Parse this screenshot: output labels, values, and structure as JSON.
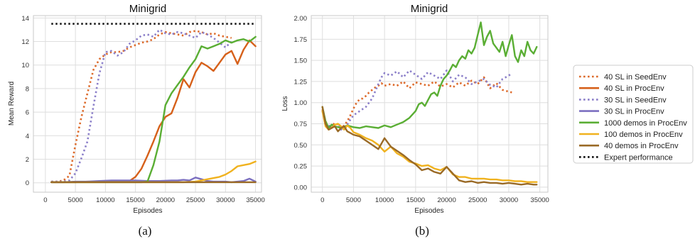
{
  "legend": [
    {
      "label": "40 SL in SeedEnv",
      "color": "#dd6a2a",
      "style": "dotted"
    },
    {
      "label": "40 SL in ProcEnv",
      "color": "#d6601a",
      "style": "solid"
    },
    {
      "label": "30 SL in SeedEnv",
      "color": "#8b7fc9",
      "style": "dotted"
    },
    {
      "label": "30 SL in ProcEnv",
      "color": "#7b6fc0",
      "style": "solid"
    },
    {
      "label": "1000 demos in ProcEnv",
      "color": "#5aae34",
      "style": "solid"
    },
    {
      "label": "100 demos in ProcEnv",
      "color": "#f0b21e",
      "style": "solid"
    },
    {
      "label": "40 demos in ProcEnv",
      "color": "#9a6a26",
      "style": "solid"
    },
    {
      "label": "Expert performance",
      "color": "#111111",
      "style": "dotted"
    }
  ],
  "chart_data": [
    {
      "type": "line",
      "title": "Minigrid",
      "caption": "(a)",
      "xlabel": "Episodes",
      "ylabel": "Mean Reward",
      "xlim": [
        -2000,
        36000
      ],
      "ylim": [
        -0.8,
        14.2
      ],
      "xticks": [
        0,
        5000,
        10000,
        15000,
        20000,
        25000,
        30000,
        35000
      ],
      "yticks": [
        0,
        2,
        4,
        6,
        8,
        10,
        12,
        14
      ],
      "xtick_labels": [
        "0",
        "5000",
        "10000",
        "15000",
        "20000",
        "25000",
        "30000",
        "35000"
      ],
      "ytick_labels": [
        "0",
        "2",
        "4",
        "6",
        "8",
        "10",
        "12",
        "14"
      ],
      "grid": true,
      "series": [
        {
          "name": "40 SL in SeedEnv",
          "x": [
            1000,
            2000,
            3000,
            4000,
            5000,
            6000,
            7000,
            8000,
            9000,
            10000,
            11000,
            12000,
            13000,
            14000,
            15000,
            16000,
            17000,
            18000,
            19000,
            20000,
            21000,
            22000,
            23000,
            24000,
            25000,
            26000,
            27000,
            28000,
            29000,
            30000,
            31000
          ],
          "y": [
            0.1,
            0.1,
            0.2,
            0.6,
            3.2,
            5.6,
            7.6,
            9.6,
            10.5,
            10.9,
            11.1,
            11.1,
            11.2,
            11.5,
            11.7,
            11.9,
            12.0,
            12.2,
            12.6,
            12.8,
            12.7,
            12.6,
            12.5,
            12.8,
            12.9,
            12.8,
            12.6,
            12.7,
            12.5,
            12.4,
            12.3
          ]
        },
        {
          "name": "40 SL in ProcEnv",
          "x": [
            1000,
            3000,
            5000,
            7000,
            9000,
            11000,
            13000,
            14000,
            15000,
            16000,
            17000,
            18000,
            19000,
            20000,
            21000,
            22000,
            23000,
            24000,
            25000,
            26000,
            27000,
            28000,
            29000,
            30000,
            31000,
            32000,
            33000,
            34000,
            35000
          ],
          "y": [
            0.05,
            0.05,
            0.05,
            0.1,
            0.1,
            0.1,
            0.1,
            0.15,
            0.5,
            1.2,
            2.3,
            3.5,
            4.8,
            5.6,
            5.9,
            7.2,
            8.8,
            8.1,
            9.4,
            10.2,
            9.9,
            9.5,
            10.2,
            10.9,
            11.2,
            10.1,
            11.3,
            12.1,
            11.6
          ]
        },
        {
          "name": "30 SL in SeedEnv",
          "x": [
            1000,
            3000,
            4000,
            5000,
            6000,
            7000,
            8000,
            9000,
            10000,
            11000,
            12000,
            13000,
            14000,
            15000,
            16000,
            17000,
            18000,
            19000,
            20000,
            21000,
            22000,
            23000,
            24000,
            25000,
            26000,
            27000,
            28000,
            29000,
            30000,
            31000
          ],
          "y": [
            0.1,
            0.1,
            0.2,
            0.8,
            2.1,
            3.5,
            6.5,
            9.3,
            11.1,
            11.2,
            10.8,
            11.1,
            11.8,
            12.1,
            12.5,
            12.6,
            12.4,
            13.0,
            12.7,
            12.6,
            12.8,
            12.7,
            12.5,
            12.3,
            12.8,
            12.6,
            12.3,
            11.9,
            11.5,
            12.0
          ]
        },
        {
          "name": "30 SL in ProcEnv",
          "x": [
            1000,
            3000,
            5000,
            7000,
            9000,
            11000,
            13000,
            15000,
            17000,
            19000,
            21000,
            22000,
            23000,
            24000,
            25000,
            26000,
            27000,
            28000,
            29000,
            30000,
            31000,
            32000,
            33000,
            34000,
            35000
          ],
          "y": [
            0.05,
            0.05,
            0.1,
            0.1,
            0.15,
            0.2,
            0.2,
            0.2,
            0.15,
            0.15,
            0.2,
            0.2,
            0.25,
            0.2,
            0.45,
            0.3,
            0.15,
            0.1,
            0.1,
            0.1,
            0.05,
            0.1,
            0.15,
            0.35,
            0.1
          ]
        },
        {
          "name": "1000 demos in ProcEnv",
          "x": [
            1000,
            3000,
            5000,
            7000,
            9000,
            11000,
            13000,
            15000,
            16000,
            17000,
            18000,
            19000,
            20000,
            21000,
            22000,
            23000,
            24000,
            25000,
            26000,
            27000,
            28000,
            29000,
            30000,
            31000,
            32000,
            33000,
            34000,
            35000
          ],
          "y": [
            0.05,
            0.05,
            0.05,
            0.05,
            0.05,
            0.05,
            0.05,
            0.05,
            0.05,
            0.1,
            1.5,
            3.5,
            6.6,
            7.6,
            8.3,
            9.0,
            9.8,
            10.5,
            11.6,
            11.4,
            11.6,
            11.8,
            12.1,
            11.9,
            12.1,
            12.2,
            12.0,
            12.4
          ]
        },
        {
          "name": "100 demos in ProcEnv",
          "x": [
            1000,
            3000,
            5000,
            7000,
            9000,
            11000,
            13000,
            15000,
            17000,
            19000,
            21000,
            23000,
            25000,
            26000,
            27000,
            28000,
            29000,
            30000,
            31000,
            32000,
            33000,
            34000,
            35000
          ],
          "y": [
            0.05,
            0.05,
            0.05,
            0.05,
            0.05,
            0.05,
            0.05,
            0.05,
            0.05,
            0.05,
            0.05,
            0.05,
            0.1,
            0.2,
            0.3,
            0.4,
            0.5,
            0.7,
            1.0,
            1.4,
            1.5,
            1.6,
            1.8
          ]
        },
        {
          "name": "40 demos in ProcEnv",
          "x": [
            1000,
            3000,
            5000,
            7000,
            9000,
            11000,
            13000,
            15000,
            17000,
            19000,
            21000,
            23000,
            25000,
            27000,
            29000,
            31000,
            33000,
            35000
          ],
          "y": [
            0.05,
            0.05,
            0.05,
            0.05,
            0.05,
            0.05,
            0.05,
            0.05,
            0.05,
            0.05,
            0.05,
            0.05,
            0.05,
            0.05,
            0.05,
            0.05,
            0.05,
            0.05
          ]
        },
        {
          "name": "Expert performance",
          "x": [
            1000,
            35000
          ],
          "y": [
            13.5,
            13.5
          ]
        }
      ]
    },
    {
      "type": "line",
      "title": "Minigrid",
      "caption": "(b)",
      "xlabel": "Episodes",
      "ylabel": "Loss",
      "xlim": [
        -1800,
        36300
      ],
      "ylim": [
        -0.06,
        2.03
      ],
      "xticks": [
        0,
        5000,
        10000,
        15000,
        20000,
        25000,
        30000,
        35000
      ],
      "yticks": [
        0.0,
        0.25,
        0.5,
        0.75,
        1.0,
        1.25,
        1.5,
        1.75,
        2.0
      ],
      "xtick_labels": [
        "0",
        "5000",
        "10000",
        "15000",
        "20000",
        "25000",
        "30000",
        "35000"
      ],
      "ytick_labels": [
        "0.00",
        "0.25",
        "0.50",
        "0.75",
        "1.00",
        "1.25",
        "1.50",
        "1.75",
        "2.00"
      ],
      "grid": true,
      "series": [
        {
          "name": "40 SL in SeedEnv",
          "x": [
            0,
            500,
            1000,
            1500,
            2000,
            2500,
            3000,
            3500,
            4000,
            4500,
            5000,
            5500,
            6000,
            6500,
            7000,
            7500,
            8000,
            8500,
            9000,
            9500,
            10000,
            11000,
            12000,
            13000,
            14000,
            15000,
            16000,
            17000,
            18000,
            19000,
            20000,
            21000,
            22000,
            23000,
            24000,
            25000,
            26000,
            27000,
            28000,
            29000,
            30000,
            30500
          ],
          "y": [
            0.92,
            0.78,
            0.7,
            0.72,
            0.76,
            0.74,
            0.7,
            0.73,
            0.78,
            0.85,
            0.93,
            1.0,
            1.04,
            1.05,
            1.08,
            1.12,
            1.15,
            1.18,
            1.2,
            1.23,
            1.2,
            1.22,
            1.2,
            1.25,
            1.17,
            1.24,
            1.22,
            1.2,
            1.25,
            1.19,
            1.22,
            1.18,
            1.24,
            1.2,
            1.26,
            1.22,
            1.3,
            1.17,
            1.23,
            1.15,
            1.13,
            1.12
          ]
        },
        {
          "name": "30 SL in SeedEnv",
          "x": [
            0,
            500,
            1000,
            1500,
            2000,
            2500,
            3000,
            3500,
            4000,
            4500,
            5000,
            6000,
            7000,
            8000,
            9000,
            9500,
            10000,
            11000,
            12000,
            13000,
            14000,
            15000,
            16000,
            17000,
            18000,
            19000,
            20000,
            21000,
            22000,
            23000,
            24000,
            25000,
            26000,
            27000,
            28000,
            29000,
            30000,
            30500
          ],
          "y": [
            0.9,
            0.75,
            0.72,
            0.74,
            0.7,
            0.73,
            0.68,
            0.72,
            0.74,
            0.8,
            0.85,
            0.9,
            0.95,
            1.05,
            1.22,
            1.3,
            1.35,
            1.32,
            1.37,
            1.3,
            1.38,
            1.33,
            1.28,
            1.36,
            1.32,
            1.28,
            1.38,
            1.25,
            1.33,
            1.3,
            1.22,
            1.25,
            1.28,
            1.21,
            1.18,
            1.28,
            1.32,
            1.35
          ]
        },
        {
          "name": "1000 demos in ProcEnv",
          "x": [
            0,
            500,
            1000,
            1500,
            2000,
            3000,
            4000,
            5000,
            6000,
            7000,
            8000,
            9000,
            10000,
            11000,
            12000,
            13000,
            14000,
            15000,
            15500,
            16000,
            16500,
            17000,
            17500,
            18000,
            18500,
            19000,
            19500,
            20000,
            20500,
            21000,
            21500,
            22000,
            22500,
            23000,
            23500,
            24000,
            24500,
            25000,
            25500,
            26000,
            26500,
            27000,
            27500,
            28000,
            28500,
            29000,
            29500,
            30000,
            30500,
            31000,
            31500,
            32000,
            32500,
            33000,
            33500,
            34000,
            34500
          ],
          "y": [
            0.95,
            0.78,
            0.7,
            0.74,
            0.72,
            0.7,
            0.73,
            0.71,
            0.7,
            0.72,
            0.71,
            0.7,
            0.73,
            0.71,
            0.74,
            0.77,
            0.82,
            0.9,
            0.98,
            1.0,
            0.96,
            1.03,
            1.1,
            1.12,
            1.08,
            1.2,
            1.28,
            1.32,
            1.38,
            1.45,
            1.42,
            1.5,
            1.55,
            1.52,
            1.62,
            1.58,
            1.65,
            1.8,
            1.95,
            1.68,
            1.78,
            1.85,
            1.7,
            1.65,
            1.6,
            1.72,
            1.55,
            1.68,
            1.8,
            1.55,
            1.48,
            1.62,
            1.55,
            1.72,
            1.62,
            1.58,
            1.66
          ]
        },
        {
          "name": "100 demos in ProcEnv",
          "x": [
            0,
            500,
            1000,
            1500,
            2000,
            2500,
            3000,
            3500,
            4000,
            4500,
            5000,
            6000,
            7000,
            8000,
            9000,
            10000,
            11000,
            12000,
            13000,
            14000,
            15000,
            16000,
            17000,
            18000,
            19000,
            20000,
            21000,
            22000,
            23000,
            24000,
            25000,
            26000,
            27000,
            28000,
            29000,
            30000,
            31000,
            32000,
            33000,
            34000,
            34500
          ],
          "y": [
            0.9,
            0.72,
            0.68,
            0.7,
            0.74,
            0.75,
            0.72,
            0.68,
            0.73,
            0.7,
            0.65,
            0.62,
            0.58,
            0.55,
            0.5,
            0.42,
            0.48,
            0.4,
            0.36,
            0.3,
            0.28,
            0.25,
            0.26,
            0.22,
            0.2,
            0.24,
            0.15,
            0.12,
            0.12,
            0.1,
            0.1,
            0.1,
            0.09,
            0.09,
            0.08,
            0.08,
            0.07,
            0.07,
            0.06,
            0.06,
            0.06
          ]
        },
        {
          "name": "40 demos in ProcEnv",
          "x": [
            0,
            500,
            1000,
            1500,
            2000,
            2500,
            3000,
            3500,
            4000,
            4500,
            5000,
            6000,
            7000,
            8000,
            9000,
            10000,
            11000,
            12000,
            13000,
            14000,
            15000,
            16000,
            17000,
            18000,
            19000,
            20000,
            21000,
            22000,
            23000,
            24000,
            25000,
            26000,
            27000,
            28000,
            29000,
            30000,
            31000,
            32000,
            33000,
            34000,
            34500
          ],
          "y": [
            0.95,
            0.75,
            0.68,
            0.7,
            0.72,
            0.66,
            0.7,
            0.72,
            0.66,
            0.64,
            0.62,
            0.6,
            0.55,
            0.5,
            0.45,
            0.58,
            0.48,
            0.43,
            0.38,
            0.32,
            0.27,
            0.2,
            0.22,
            0.18,
            0.16,
            0.24,
            0.16,
            0.08,
            0.06,
            0.07,
            0.05,
            0.06,
            0.05,
            0.05,
            0.04,
            0.05,
            0.04,
            0.03,
            0.04,
            0.03,
            0.03
          ]
        }
      ]
    }
  ]
}
